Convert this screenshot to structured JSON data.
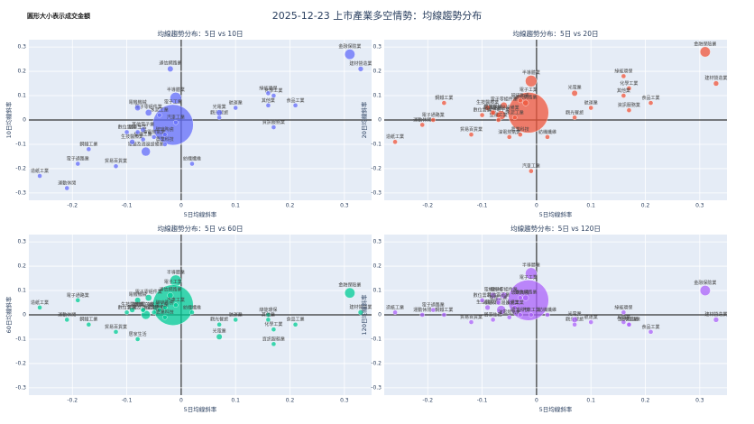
{
  "title": "2025-12-23 上市產業多空情勢：均線趨勢分布",
  "size_note": "圓形大小表示成交金額",
  "chart_data": [
    {
      "type": "scatter",
      "title": "均線趨勢分布：5日 vs 10日",
      "x_label": "5日均線斜率",
      "y_label": "10日均線斜率",
      "color": "#636efa",
      "labels": [
        "金融保險業",
        "建材營造業",
        "食品工業",
        "化學工業",
        "綠能環保",
        "其他業",
        "資訊服務業",
        "航運業",
        "觀光餐旅",
        "光電業",
        "半導體業",
        "電子工業",
        "電子零組件業",
        "電機機械",
        "通信網路業",
        "電腦及週邊設備業",
        "其他電子業",
        "電子通路業",
        "生技醫療業",
        "塑膠工業",
        "油電燃氣業",
        "紡織纖維",
        "汽車工業",
        "鋼鐵工業",
        "貿易百貨業",
        "造紙工業",
        "運動休閒",
        "居家生活",
        "玻璃陶瓷",
        "水泥工業",
        "數位雲端",
        "農業科技"
      ],
      "x": [
        0.31,
        0.33,
        0.21,
        0.17,
        0.16,
        0.16,
        0.17,
        0.1,
        0.07,
        0.07,
        -0.01,
        -0.015,
        -0.06,
        -0.08,
        -0.02,
        -0.065,
        -0.07,
        -0.19,
        -0.09,
        -0.07,
        -0.05,
        0.02,
        -0.01,
        -0.17,
        -0.12,
        -0.26,
        -0.21,
        -0.08,
        -0.03,
        -0.04,
        -0.1,
        -0.03
      ],
      "y": [
        0.27,
        0.21,
        0.06,
        0.1,
        0.11,
        0.06,
        -0.03,
        0.05,
        0.01,
        0.03,
        0.09,
        -0.02,
        0.03,
        0.05,
        0.21,
        -0.13,
        -0.04,
        -0.18,
        -0.09,
        -0.08,
        -0.07,
        -0.18,
        -0.01,
        -0.12,
        -0.19,
        -0.23,
        -0.28,
        -0.05,
        -0.06,
        0.02,
        -0.05,
        -0.1
      ],
      "sizes": [
        12,
        4,
        3,
        3,
        3,
        3,
        3,
        3,
        3,
        5,
        14,
        60,
        6,
        5,
        5,
        10,
        4,
        3,
        4,
        3,
        3,
        3,
        3,
        3,
        3,
        3,
        3,
        3,
        3,
        3,
        3,
        3
      ],
      "xlim": [
        -0.28,
        0.35
      ],
      "ylim": [
        -0.33,
        0.33
      ],
      "xticks": [
        -0.2,
        -0.1,
        0,
        0.1,
        0.2,
        0.3
      ],
      "yticks": [
        -0.3,
        -0.2,
        -0.1,
        0,
        0.1,
        0.2,
        0.3
      ]
    },
    {
      "type": "scatter",
      "title": "均線趨勢分布：5日 vs 20日",
      "x_label": "5日均線斜率",
      "y_label": "20日均線斜率",
      "color": "#ef553b",
      "labels": [
        "金融保險業",
        "建材營造業",
        "食品工業",
        "化學工業",
        "綠能環保",
        "其他業",
        "資訊服務業",
        "航運業",
        "觀光餐旅",
        "光電業",
        "半導體業",
        "電子工業",
        "電子零組件業",
        "電機機械",
        "通信網路業",
        "電腦及週邊設備業",
        "其他電子業",
        "電子通路業",
        "生技醫療業",
        "塑膠工業",
        "油電燃氣業",
        "紡織纖維",
        "汽車工業",
        "鋼鐵工業",
        "貿易百貨業",
        "造紙工業",
        "運動休閒",
        "居家生活",
        "玻璃陶瓷",
        "水泥工業",
        "數位雲端",
        "農業科技"
      ],
      "x": [
        0.31,
        0.33,
        0.21,
        0.17,
        0.16,
        0.16,
        0.17,
        0.1,
        0.07,
        0.07,
        -0.01,
        -0.015,
        -0.06,
        -0.08,
        -0.02,
        -0.065,
        -0.07,
        -0.19,
        -0.09,
        -0.07,
        -0.05,
        0.02,
        -0.01,
        -0.17,
        -0.12,
        -0.26,
        -0.21,
        -0.08,
        -0.03,
        -0.04,
        -0.1,
        -0.03
      ],
      "y": [
        0.28,
        0.15,
        0.07,
        0.13,
        0.18,
        0.1,
        0.04,
        0.05,
        0.01,
        0.11,
        0.16,
        0.03,
        0.06,
        0.03,
        0.07,
        0.02,
        0.02,
        0.0,
        0.05,
        0.0,
        -0.07,
        -0.07,
        -0.21,
        0.07,
        -0.06,
        -0.09,
        -0.02,
        0.03,
        0.08,
        0.01,
        0.02,
        -0.06
      ],
      "sizes": [
        12,
        4,
        3,
        3,
        3,
        3,
        3,
        3,
        3,
        5,
        14,
        60,
        6,
        5,
        5,
        10,
        4,
        3,
        4,
        3,
        3,
        3,
        3,
        3,
        3,
        3,
        3,
        3,
        3,
        3,
        3,
        3
      ],
      "xlim": [
        -0.28,
        0.35
      ],
      "ylim": [
        -0.33,
        0.33
      ],
      "xticks": [
        -0.2,
        -0.1,
        0,
        0.1,
        0.2,
        0.3
      ],
      "yticks": [
        -0.3,
        -0.2,
        -0.1,
        0,
        0.1,
        0.2,
        0.3
      ]
    },
    {
      "type": "scatter",
      "title": "均線趨勢分布：5日 vs 60日",
      "x_label": "5日均線斜率",
      "y_label": "60日均線斜率",
      "color": "#00cc96",
      "labels": [
        "金融保險業",
        "建材營造業",
        "食品工業",
        "化學工業",
        "綠能環保",
        "其他業",
        "資訊服務業",
        "航運業",
        "觀光餐旅",
        "光電業",
        "半導體業",
        "電子工業",
        "電子零組件業",
        "電機機械",
        "通信網路業",
        "電腦及週邊設備業",
        "其他電子業",
        "電子通路業",
        "生技醫療業",
        "塑膠工業",
        "油電燃氣業",
        "紡織纖維",
        "汽車工業",
        "鋼鐵工業",
        "貿易百貨業",
        "造紙工業",
        "運動休閒",
        "居家生活",
        "玻璃陶瓷",
        "水泥工業",
        "數位雲端",
        "農業科技"
      ],
      "x": [
        0.31,
        0.33,
        0.21,
        0.17,
        0.16,
        0.16,
        0.17,
        0.1,
        0.07,
        0.07,
        -0.01,
        -0.015,
        -0.06,
        -0.08,
        -0.02,
        -0.065,
        -0.07,
        -0.19,
        -0.09,
        -0.07,
        -0.05,
        0.02,
        -0.01,
        -0.17,
        -0.12,
        -0.26,
        -0.21,
        -0.08,
        -0.03,
        -0.04,
        -0.1,
        -0.03
      ],
      "y": [
        0.09,
        0.01,
        -0.04,
        -0.06,
        0.0,
        -0.02,
        -0.12,
        -0.02,
        -0.04,
        -0.09,
        0.14,
        0.04,
        0.07,
        0.06,
        0.08,
        0.0,
        0.02,
        0.06,
        0.02,
        0.02,
        0.01,
        0.01,
        0.04,
        -0.04,
        -0.07,
        0.03,
        -0.02,
        -0.1,
        0.03,
        0.02,
        0.01,
        -0.01
      ],
      "sizes": [
        12,
        4,
        3,
        3,
        3,
        3,
        3,
        3,
        3,
        5,
        14,
        60,
        6,
        5,
        5,
        10,
        4,
        3,
        4,
        3,
        3,
        3,
        3,
        3,
        3,
        3,
        3,
        3,
        3,
        3,
        3,
        3
      ],
      "xlim": [
        -0.28,
        0.35
      ],
      "ylim": [
        -0.33,
        0.33
      ],
      "xticks": [
        -0.2,
        -0.1,
        0,
        0.1,
        0.2,
        0.3
      ],
      "yticks": [
        -0.3,
        -0.2,
        -0.1,
        0,
        0.1,
        0.2,
        0.3
      ]
    },
    {
      "type": "scatter",
      "title": "均線趨勢分布：5日 vs 120日",
      "x_label": "5日均線斜率",
      "y_label": "120日均線斜率",
      "color": "#ab63fa",
      "labels": [
        "金融保險業",
        "建材營造業",
        "食品工業",
        "化學工業",
        "綠能環保",
        "其他業",
        "資訊服務業",
        "航運業",
        "觀光餐旅",
        "光電業",
        "半導體業",
        "電子工業",
        "電子零組件業",
        "電機機械",
        "通信網路業",
        "電腦及週邊設備業",
        "其他電子業",
        "電子通路業",
        "生技醫療業",
        "塑膠工業",
        "油電燃氣業",
        "紡織纖維",
        "汽車工業",
        "鋼鐵工業",
        "貿易百貨業",
        "造紙工業",
        "運動休閒",
        "居家生活",
        "玻璃陶瓷",
        "水泥工業",
        "數位雲端",
        "農業科技"
      ],
      "x": [
        0.31,
        0.33,
        0.21,
        0.17,
        0.16,
        0.16,
        0.17,
        0.1,
        0.07,
        0.07,
        -0.01,
        -0.015,
        -0.06,
        -0.08,
        -0.02,
        -0.065,
        -0.07,
        -0.19,
        -0.09,
        -0.07,
        -0.05,
        0.02,
        -0.01,
        -0.17,
        -0.12,
        -0.26,
        -0.21,
        -0.08,
        -0.03,
        -0.04,
        -0.1,
        -0.03
      ],
      "y": [
        0.1,
        -0.02,
        -0.07,
        -0.04,
        0.01,
        -0.03,
        -0.04,
        -0.03,
        -0.04,
        -0.02,
        0.17,
        0.06,
        0.08,
        0.08,
        0.07,
        0.02,
        0.06,
        0.02,
        0.03,
        0.05,
        -0.01,
        0.0,
        0.0,
        0.0,
        -0.03,
        0.01,
        0.0,
        -0.02,
        0.07,
        0.03,
        0.06,
        0.0
      ],
      "sizes": [
        12,
        4,
        3,
        3,
        3,
        3,
        3,
        3,
        3,
        5,
        14,
        60,
        6,
        5,
        5,
        10,
        4,
        3,
        4,
        3,
        3,
        3,
        3,
        3,
        3,
        3,
        3,
        3,
        3,
        3,
        3,
        3
      ],
      "xlim": [
        -0.28,
        0.35
      ],
      "ylim": [
        -0.33,
        0.33
      ],
      "xticks": [
        -0.2,
        -0.1,
        0,
        0.1,
        0.2,
        0.3
      ],
      "yticks": [
        -0.3,
        -0.2,
        -0.1,
        0,
        0.1,
        0.2,
        0.3
      ]
    }
  ]
}
